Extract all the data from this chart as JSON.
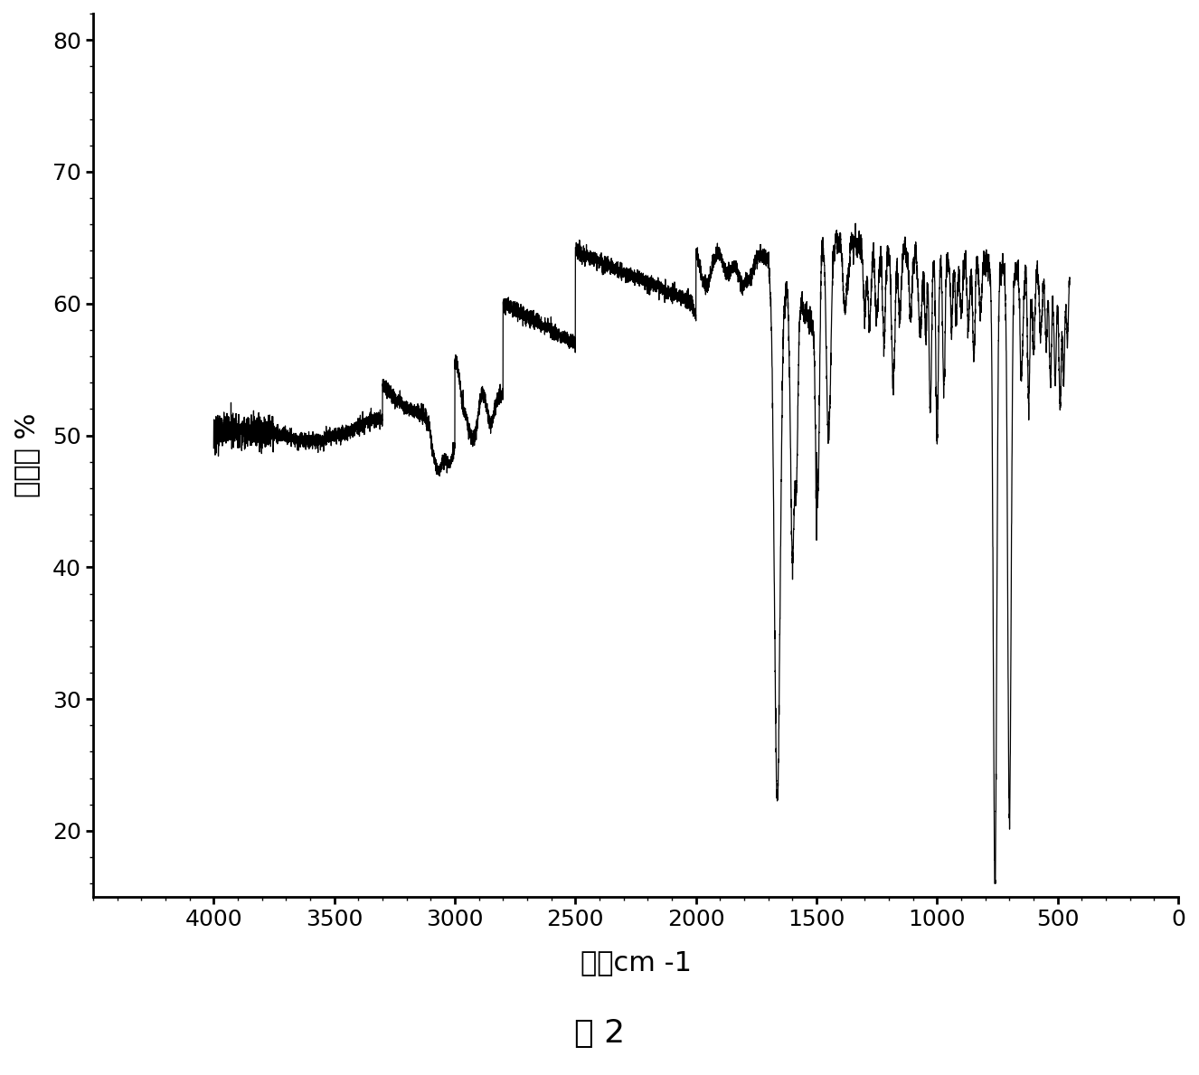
{
  "xlabel": "波数cm -1",
  "ylabel": "透射率 %",
  "xlim": [
    4500,
    0
  ],
  "ylim": [
    15,
    82
  ],
  "yticks": [
    20,
    30,
    40,
    50,
    60,
    70,
    80
  ],
  "xticks": [
    4000,
    3500,
    3000,
    2500,
    2000,
    1500,
    1000,
    500,
    0
  ],
  "figure_caption": "图 2",
  "line_color": "#000000",
  "background_color": "#ffffff",
  "font_size_label": 22,
  "font_size_tick": 18,
  "font_size_caption": 26
}
